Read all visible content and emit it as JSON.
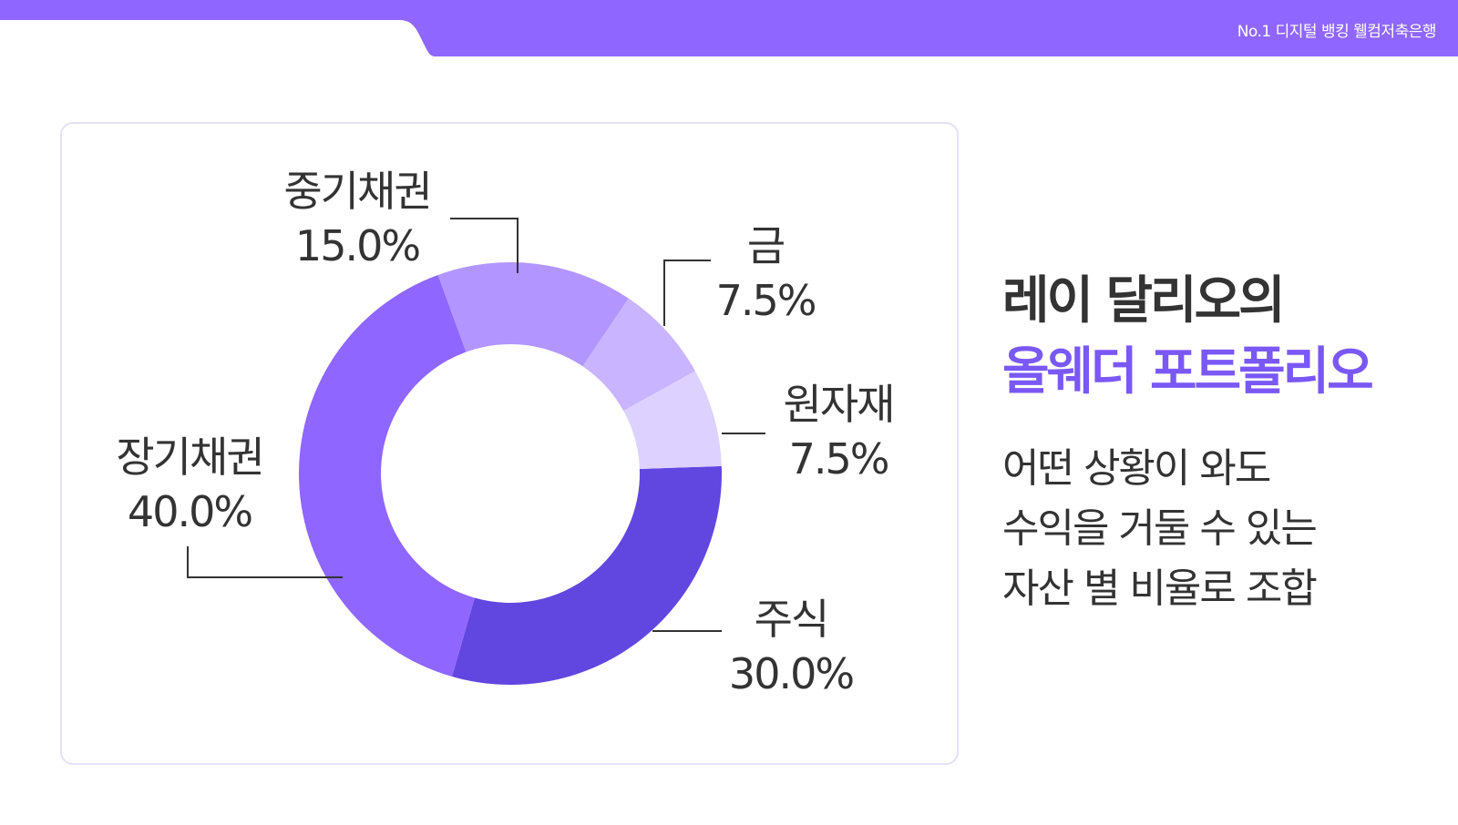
{
  "header": {
    "brand": "No.1 디지털 뱅킹 웰컴저축은행"
  },
  "colors": {
    "header_bar": "#8f66ff",
    "card_border": "#e6e1f7",
    "text_dark": "#333333",
    "accent": "#7a58f5",
    "leader_line": "#333333"
  },
  "chart_data": {
    "type": "pie",
    "donut": true,
    "categories": [
      "주식",
      "장기채권",
      "중기채권",
      "금",
      "원자재"
    ],
    "values": [
      30.0,
      40.0,
      15.0,
      7.5,
      7.5
    ],
    "value_labels": [
      "30.0%",
      "40.0%",
      "15.0%",
      "7.5%",
      "7.5%"
    ],
    "colors": [
      "#6246e0",
      "#8f66ff",
      "#b295ff",
      "#c8b4ff",
      "#ddd1ff"
    ],
    "title": "",
    "legend": "none"
  },
  "side_text": {
    "headline_line1": "레이 달리오의",
    "headline_line2": "올웨더 포트폴리오",
    "desc_line1": "어떤 상황이 와도",
    "desc_line2": "수익을 거둘 수 있는",
    "desc_line3": "자산 별 비율로 조합"
  }
}
